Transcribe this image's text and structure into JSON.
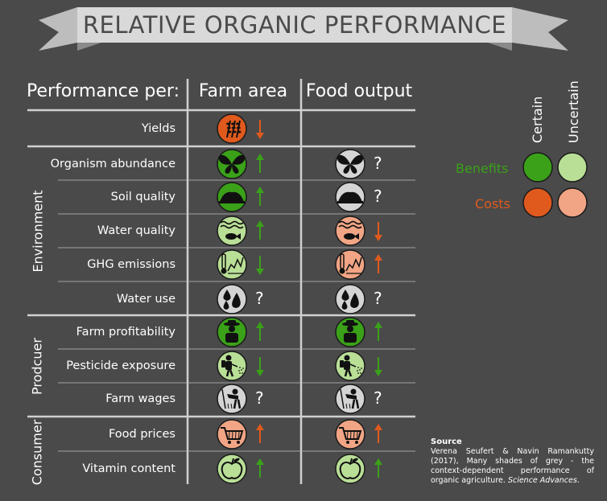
{
  "title": "RELATIVE ORGANIC PERFORMANCE",
  "header": {
    "performance_per": "Performance per:",
    "col_farm_area": "Farm area",
    "col_food_output": "Food output"
  },
  "groups": {
    "environment": "Environment",
    "producer": "Prodcuer",
    "consumer": "Consumer"
  },
  "rows": [
    {
      "label": "Yields",
      "icon": "wheat-icon",
      "farm": {
        "category": "cost",
        "certainty": "certain",
        "direction": "down"
      },
      "food": null
    },
    {
      "label": "Organism abundance",
      "icon": "butterfly-icon",
      "farm": {
        "category": "benefit",
        "certainty": "certain",
        "direction": "up"
      },
      "food": {
        "category": "unknown",
        "certainty": "unknown",
        "direction": "?"
      }
    },
    {
      "label": "Soil quality",
      "icon": "soil-icon",
      "farm": {
        "category": "benefit",
        "certainty": "certain",
        "direction": "up"
      },
      "food": {
        "category": "unknown",
        "certainty": "unknown",
        "direction": "?"
      }
    },
    {
      "label": "Water quality",
      "icon": "fish-water-icon",
      "farm": {
        "category": "benefit",
        "certainty": "uncertain",
        "direction": "up"
      },
      "food": {
        "category": "cost",
        "certainty": "uncertain",
        "direction": "down"
      }
    },
    {
      "label": "GHG emissions",
      "icon": "thermometer-icon",
      "farm": {
        "category": "benefit",
        "certainty": "uncertain",
        "direction": "down"
      },
      "food": {
        "category": "cost",
        "certainty": "uncertain",
        "direction": "up"
      }
    },
    {
      "label": "Water use",
      "icon": "water-drops-icon",
      "farm": {
        "category": "unknown",
        "certainty": "unknown",
        "direction": "?"
      },
      "food": {
        "category": "unknown",
        "certainty": "unknown",
        "direction": "?"
      }
    },
    {
      "label": "Farm profitability",
      "icon": "farmer-icon",
      "farm": {
        "category": "benefit",
        "certainty": "certain",
        "direction": "up"
      },
      "food": {
        "category": "benefit",
        "certainty": "certain",
        "direction": "up"
      }
    },
    {
      "label": "Pesticide exposure",
      "icon": "sprayer-icon",
      "farm": {
        "category": "benefit",
        "certainty": "uncertain",
        "direction": "down"
      },
      "food": {
        "category": "benefit",
        "certainty": "uncertain",
        "direction": "down"
      }
    },
    {
      "label": "Farm wages",
      "icon": "worker-icon",
      "farm": {
        "category": "unknown",
        "certainty": "unknown",
        "direction": "?"
      },
      "food": {
        "category": "unknown",
        "certainty": "unknown",
        "direction": "?"
      }
    },
    {
      "label": "Food prices",
      "icon": "cart-icon",
      "farm": {
        "category": "cost",
        "certainty": "uncertain",
        "direction": "up"
      },
      "food": {
        "category": "cost",
        "certainty": "uncertain",
        "direction": "up"
      }
    },
    {
      "label": "Vitamin content",
      "icon": "apple-icon",
      "farm": {
        "category": "benefit",
        "certainty": "uncertain",
        "direction": "up"
      },
      "food": {
        "category": "benefit",
        "certainty": "uncertain",
        "direction": "up"
      }
    }
  ],
  "legend": {
    "certain": "Certain",
    "uncertain": "Uncertain",
    "benefits": "Benefits",
    "costs": "Costs"
  },
  "colors": {
    "background": "#4a4a4a",
    "benefit_certain": "#3aa119",
    "benefit_uncertain": "#b9df97",
    "cost_certain": "#e05a1e",
    "cost_uncertain": "#f1a585",
    "unknown": "#d4d4d4",
    "benefits_text": "#3aa119",
    "costs_text": "#e05a1e",
    "arrow_green": "#3aa119",
    "arrow_orange": "#e05a1e"
  },
  "source": {
    "title": "Source",
    "body": "Verena Seufert & Navin Ramankutty (2017), Many shades of grey - the context-dependent performance of organic agriculture.",
    "journal": "Science Advances",
    "end": "."
  },
  "question_mark": "?",
  "chart_data": {
    "type": "table",
    "title": "RELATIVE ORGANIC PERFORMANCE",
    "columns": [
      "Farm area",
      "Food output"
    ],
    "rows": [
      {
        "group": "",
        "indicator": "Yields",
        "farm_area": "cost, certain, down",
        "food_output": ""
      },
      {
        "group": "Environment",
        "indicator": "Organism abundance",
        "farm_area": "benefit, certain, up",
        "food_output": "?"
      },
      {
        "group": "Environment",
        "indicator": "Soil quality",
        "farm_area": "benefit, certain, up",
        "food_output": "?"
      },
      {
        "group": "Environment",
        "indicator": "Water quality",
        "farm_area": "benefit, uncertain, up",
        "food_output": "cost, uncertain, down"
      },
      {
        "group": "Environment",
        "indicator": "GHG emissions",
        "farm_area": "benefit, uncertain, down",
        "food_output": "cost, uncertain, up"
      },
      {
        "group": "Environment",
        "indicator": "Water use",
        "farm_area": "?",
        "food_output": "?"
      },
      {
        "group": "Prodcuer",
        "indicator": "Farm profitability",
        "farm_area": "benefit, certain, up",
        "food_output": "benefit, certain, up"
      },
      {
        "group": "Prodcuer",
        "indicator": "Pesticide exposure",
        "farm_area": "benefit, uncertain, down",
        "food_output": "benefit, uncertain, down"
      },
      {
        "group": "Prodcuer",
        "indicator": "Farm wages",
        "farm_area": "?",
        "food_output": "?"
      },
      {
        "group": "Consumer",
        "indicator": "Food prices",
        "farm_area": "cost, uncertain, up",
        "food_output": "cost, uncertain, up"
      },
      {
        "group": "Consumer",
        "indicator": "Vitamin content",
        "farm_area": "benefit, uncertain, up",
        "food_output": "benefit, uncertain, up"
      }
    ]
  }
}
